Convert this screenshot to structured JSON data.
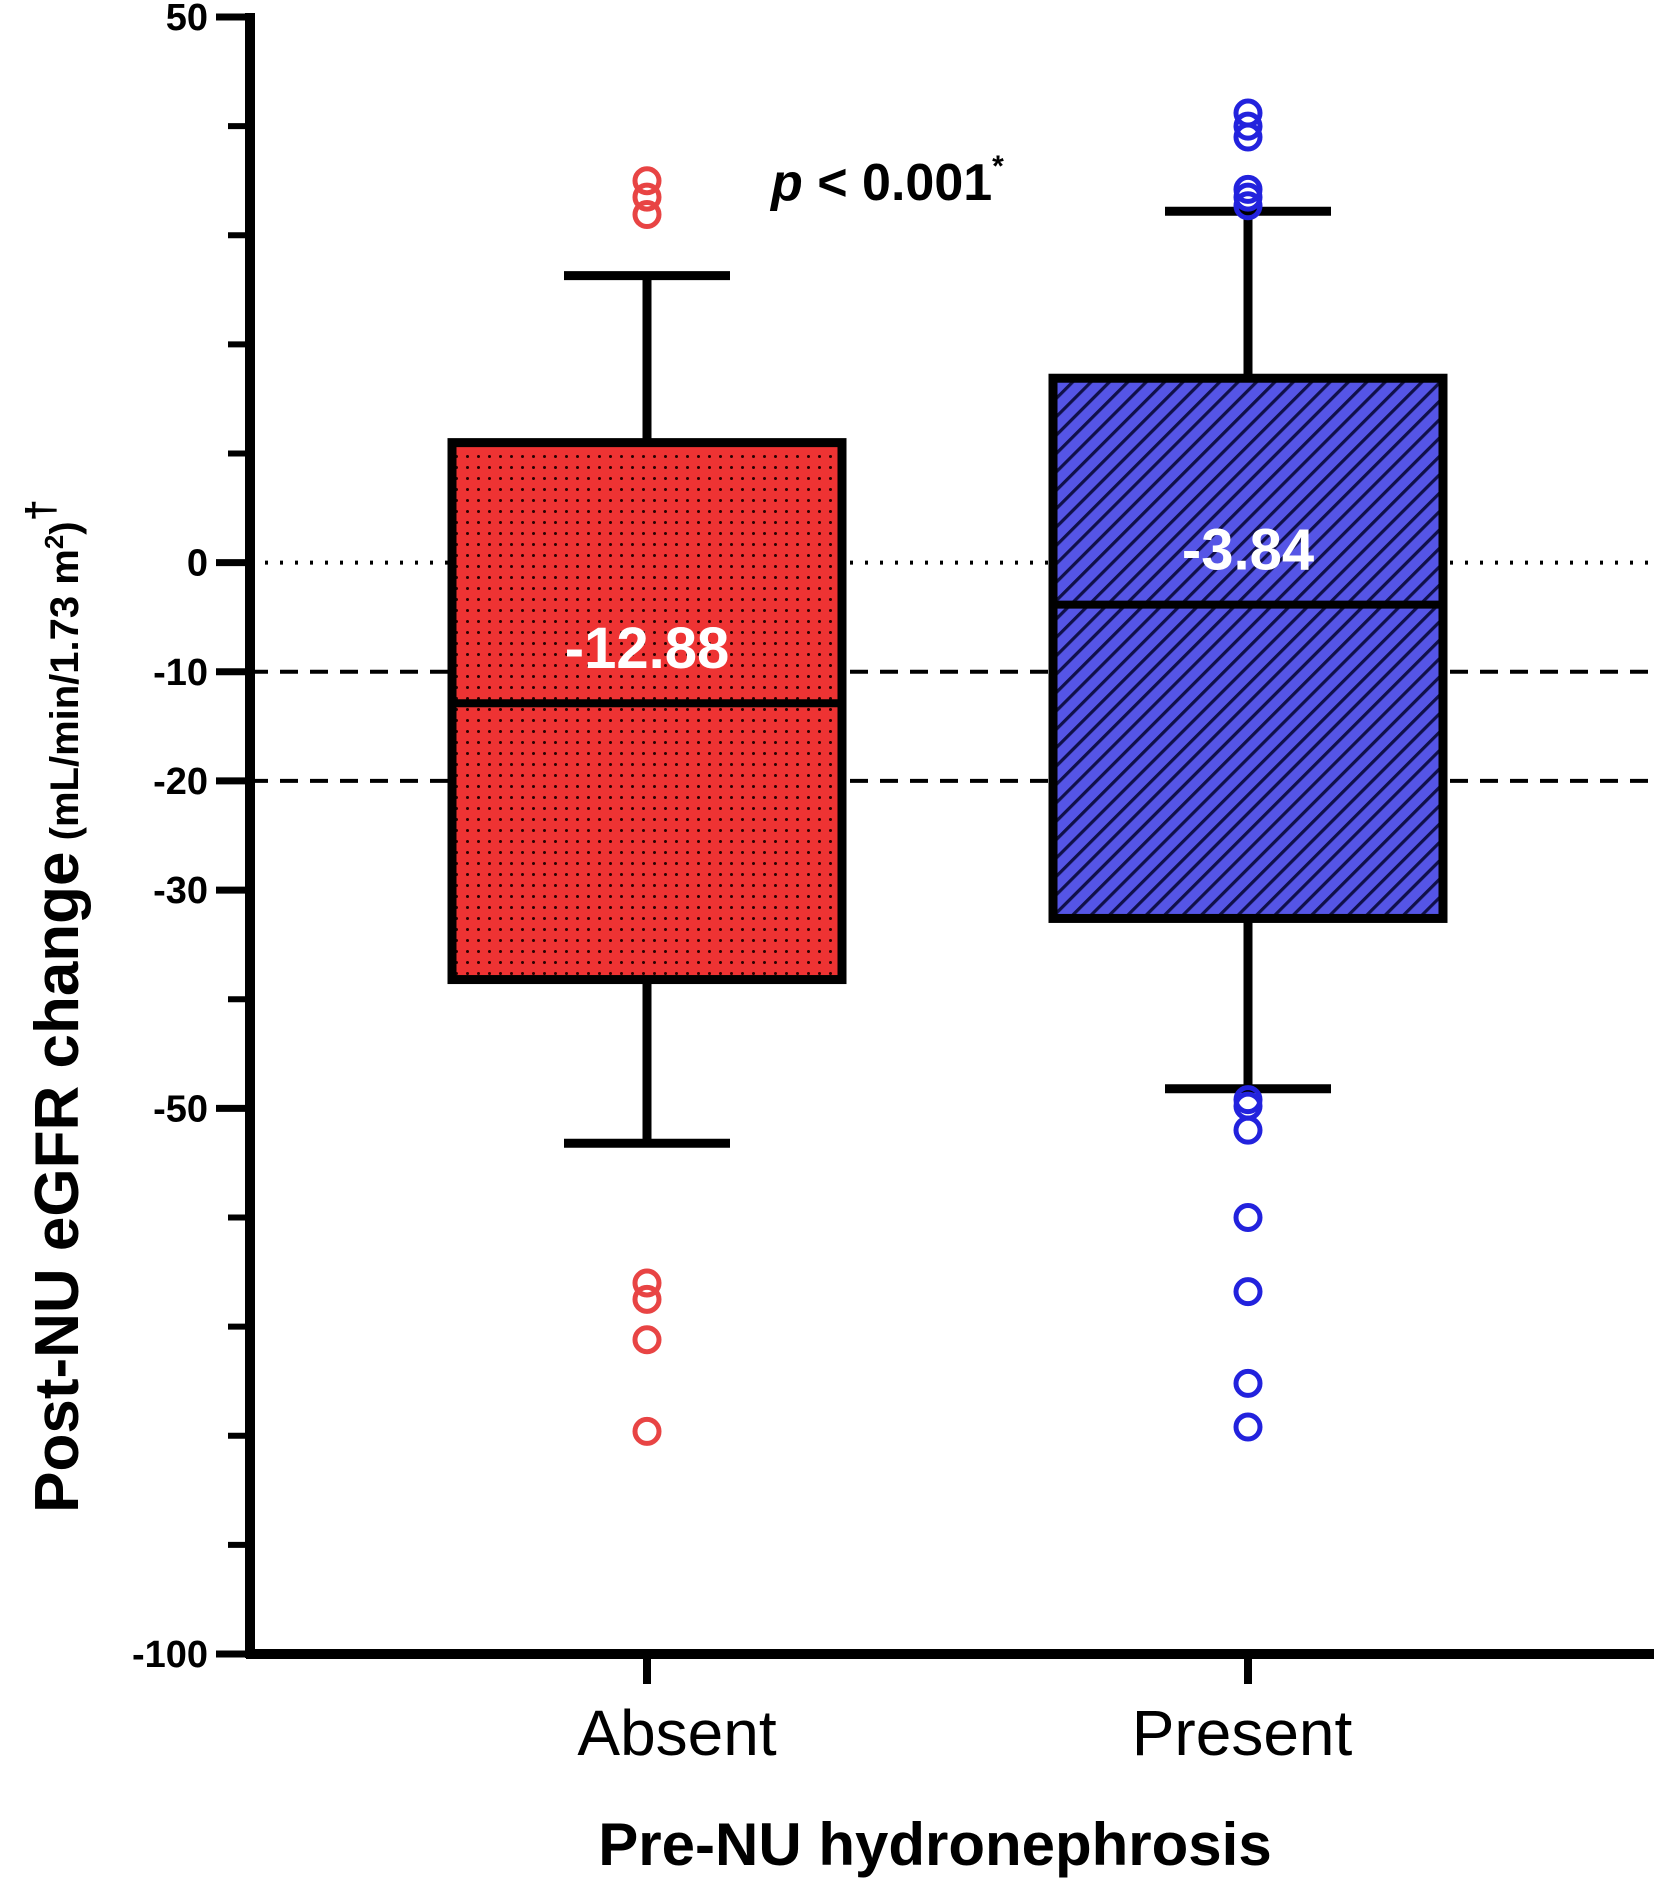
{
  "chart_data": {
    "type": "box",
    "xlabel": "Pre-NU hydronephrosis",
    "ylabel": {
      "main": "Post-NU eGFR change",
      "unit_prefix": "(mL/min/1.73 m",
      "unit_sup": "2",
      "unit_suffix": ")",
      "dagger": "†"
    },
    "ylim": [
      -100,
      50
    ],
    "yticks": [
      50,
      0,
      -10,
      -20,
      -30,
      -50,
      -100
    ],
    "yticks_minor": [
      40,
      30,
      20,
      10,
      -40,
      -60,
      -70,
      -80,
      -90
    ],
    "reference_lines": [
      {
        "y": 0,
        "style": "dotted"
      },
      {
        "y": -10,
        "style": "dashed"
      },
      {
        "y": -20,
        "style": "dashed"
      }
    ],
    "annotation": {
      "p": "p",
      "rest": " < 0.001",
      "sup": "*"
    },
    "groups": [
      {
        "name": "Absent",
        "color": "#ee3333",
        "pattern": "dots",
        "q1": -38.2,
        "median": -12.88,
        "q3": 11.0,
        "whisker_low": -53.2,
        "whisker_high": 26.3,
        "median_label": "-12.88",
        "outliers": [
          35.0,
          33.5,
          31.9,
          -66.0,
          -67.5,
          -71.2,
          -79.6
        ]
      },
      {
        "name": "Present",
        "color": "#5555e6",
        "pattern": "diagonal",
        "q1": -32.6,
        "median": -3.84,
        "q3": 16.9,
        "whisker_low": -48.2,
        "whisker_high": 32.2,
        "median_label": "-3.84",
        "outliers": [
          41.2,
          40.0,
          39.0,
          34.2,
          33.5,
          32.7,
          -49.2,
          -49.8,
          -52.0,
          -60.0,
          -66.8,
          -75.2,
          -79.2
        ]
      }
    ]
  }
}
